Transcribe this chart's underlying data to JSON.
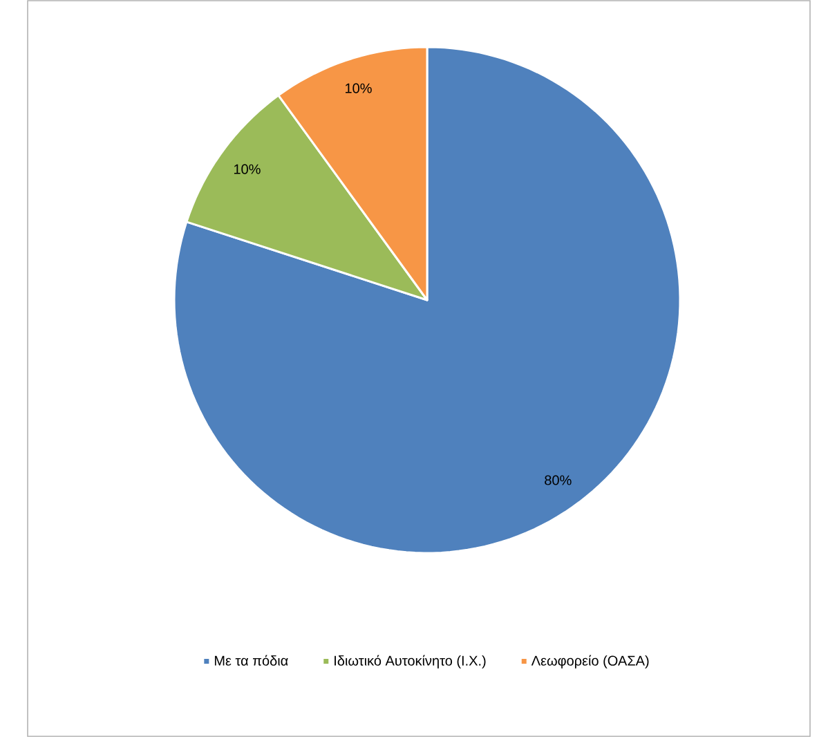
{
  "chart_data": {
    "type": "pie",
    "categories": [
      "Με τα πόδια",
      "Ιδιωτικό Αυτοκίνητο (Ι.Χ.)",
      "Λεωφορείο (ΟΑΣΑ)"
    ],
    "values": [
      80,
      10,
      10
    ],
    "colors": [
      "#4f81bd",
      "#9bbb59",
      "#f79646"
    ],
    "value_labels": [
      "80%",
      "10%",
      "10%"
    ],
    "legend": "bottom"
  }
}
